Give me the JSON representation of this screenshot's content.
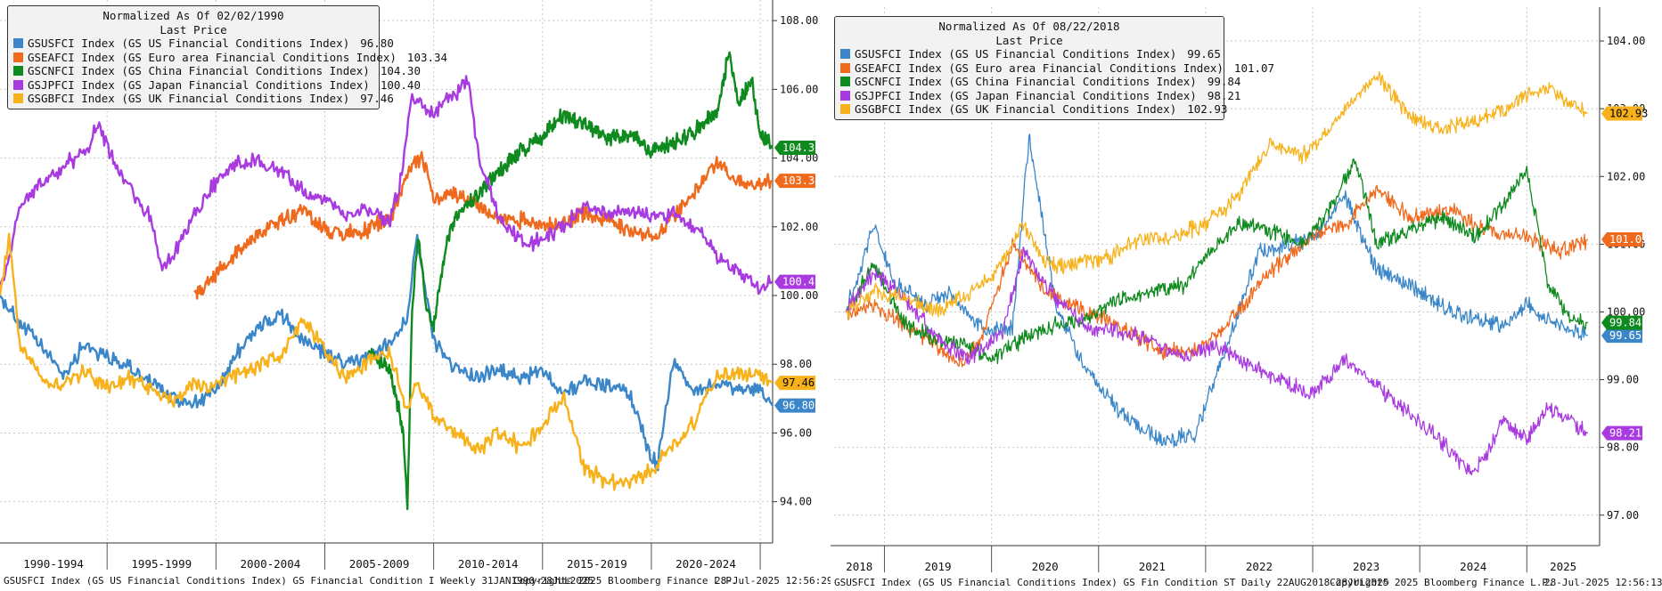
{
  "charts": [
    {
      "legend": {
        "title": "Normalized As Of 02/02/1990",
        "subtitle": "Last Price"
      },
      "footer": {
        "source": "GSUSFCI Index (GS US Financial Conditions Index) GS Financial Condition I  Weekly 31JAN1990-28JUL2025",
        "copyright": "Copyright© 2025 Bloomberg Finance L.P.",
        "timestamp": "28-Jul-2025 12:56:29"
      }
    },
    {
      "legend": {
        "title": "Normalized As Of 08/22/2018",
        "subtitle": "Last Price"
      },
      "footer": {
        "source": "GSUSFCI Index (GS US Financial Conditions Index) GS Fin Condition ST  Daily 22AUG2018-28JUL2025",
        "copyright": "Copyright© 2025 Bloomberg Finance L.P.",
        "timestamp": "28-Jul-2025 12:56:13"
      }
    }
  ],
  "chart_data": [
    {
      "type": "line",
      "xlim": [
        1990.08,
        2025.57
      ],
      "ylim": [
        92.8,
        108.6
      ],
      "y_ticks": [
        "94.00",
        "96.00",
        "98.00",
        "100.00",
        "102.00",
        "104.00",
        "106.00",
        "108.00"
      ],
      "x_tick_labels": [
        "1990-1994",
        "1995-1999",
        "2000-2004",
        "2005-2009",
        "2010-2014",
        "2015-2019",
        "2020-2024"
      ],
      "x_bounds": [
        1995,
        2000,
        2005,
        2010,
        2015,
        2020,
        2025
      ],
      "series": [
        {
          "name": "GSUSFCI Index (GS US Financial Conditions Index)",
          "last": "96.80",
          "color": "#3a86c8",
          "start": 1990.08,
          "x": [
            1990.08,
            1991,
            1992,
            1993,
            1994,
            1995,
            1996,
            1997,
            1998,
            1999,
            2000,
            2001,
            2002,
            2003,
            2004,
            2005,
            2006,
            2007,
            2008,
            2008.8,
            2009.2,
            2010,
            2011,
            2012,
            2013,
            2014,
            2015,
            2016,
            2017,
            2018,
            2019,
            2020,
            2020.3,
            2021,
            2022,
            2023,
            2024,
            2025,
            2025.57
          ],
          "y": [
            100.0,
            99.2,
            98.5,
            97.7,
            98.6,
            98.2,
            97.9,
            97.5,
            97.0,
            96.9,
            97.2,
            98.4,
            99.1,
            99.4,
            98.7,
            98.3,
            98.0,
            98.2,
            98.6,
            99.4,
            101.8,
            98.7,
            97.9,
            97.6,
            97.8,
            97.6,
            97.8,
            97.2,
            97.5,
            97.4,
            97.2,
            95.3,
            95.1,
            98.1,
            97.2,
            97.4,
            97.2,
            97.3,
            96.8
          ]
        },
        {
          "name": "GSEAFCI Index (GS Euro area Financial Conditions Index)",
          "last": "103.34",
          "color": "#f06a1e",
          "start": 1999.0,
          "x": [
            1999.0,
            2000,
            2001,
            2002,
            2003,
            2004,
            2005,
            2006,
            2007,
            2008,
            2009,
            2009.5,
            2010,
            2011,
            2012,
            2013,
            2014,
            2015,
            2016,
            2017,
            2018,
            2019,
            2020,
            2021,
            2022,
            2023,
            2024,
            2025,
            2025.57
          ],
          "y": [
            100.1,
            100.6,
            101.3,
            101.8,
            102.2,
            102.5,
            101.9,
            101.8,
            101.9,
            102.3,
            103.8,
            104.0,
            102.8,
            103.0,
            102.6,
            102.3,
            102.2,
            102.0,
            102.1,
            102.4,
            102.2,
            101.9,
            101.7,
            102.3,
            103.0,
            103.9,
            103.3,
            103.2,
            103.34
          ]
        },
        {
          "name": "GSCNFCI Index (GS China Financial Conditions Index)",
          "last": "104.30",
          "color": "#0f8a1e",
          "start": 2007.0,
          "x": [
            2007.0,
            2008,
            2008.6,
            2008.8,
            2009.0,
            2009.3,
            2009.6,
            2010,
            2010.5,
            2011,
            2012,
            2013,
            2014,
            2015,
            2016,
            2017,
            2018,
            2019,
            2020,
            2021,
            2022,
            2023,
            2023.6,
            2024,
            2024.6,
            2025,
            2025.57
          ],
          "y": [
            98.4,
            97.8,
            96.1,
            93.8,
            99.5,
            101.8,
            99.8,
            99.1,
            101.2,
            102.3,
            102.9,
            103.6,
            104.2,
            104.6,
            105.3,
            104.9,
            104.6,
            104.7,
            104.2,
            104.4,
            104.8,
            105.4,
            107.1,
            105.6,
            106.3,
            104.7,
            104.3
          ]
        },
        {
          "name": "GSJPFCI Index (GS Japan Financial Conditions Index)",
          "last": "100.40",
          "color": "#a83ae0",
          "start": 1990.08,
          "x": [
            1990.08,
            1990.5,
            1991,
            1992,
            1993,
            1994,
            1994.6,
            1995,
            1996,
            1997,
            1997.5,
            1998,
            1999,
            2000,
            2001,
            2002,
            2003,
            2004,
            2005,
            2006,
            2007,
            2008,
            2008.5,
            2009,
            2010,
            2011,
            2011.6,
            2012,
            2013,
            2014,
            2015,
            2016,
            2017,
            2018,
            2019,
            2020,
            2021,
            2022,
            2023,
            2024,
            2025,
            2025.57
          ],
          "y": [
            100.3,
            101.0,
            102.7,
            103.2,
            103.8,
            104.1,
            105.0,
            104.3,
            103.1,
            102.3,
            100.7,
            101.2,
            102.4,
            103.3,
            103.9,
            103.9,
            103.6,
            103.0,
            102.8,
            102.4,
            102.5,
            102.2,
            103.4,
            105.8,
            105.3,
            105.9,
            106.3,
            104.2,
            102.3,
            101.5,
            101.6,
            102.1,
            102.5,
            102.4,
            102.4,
            102.3,
            102.4,
            102.0,
            101.2,
            100.7,
            100.2,
            100.4
          ]
        },
        {
          "name": "GSGBFCI Index (GS UK Financial Conditions Index)",
          "last": "97.46",
          "color": "#f7b21b",
          "start": 1990.08,
          "x": [
            1990.08,
            1990.5,
            1991,
            1992,
            1993,
            1994,
            1995,
            1996,
            1997,
            1998,
            1999,
            2000,
            2001,
            2002,
            2003,
            2004,
            2005,
            2006,
            2007,
            2008,
            2008.8,
            2009.2,
            2010,
            2011,
            2012,
            2013,
            2014,
            2015,
            2016,
            2017,
            2018,
            2019,
            2020,
            2021,
            2022,
            2023,
            2024,
            2025,
            2025.57
          ],
          "y": [
            100.0,
            101.8,
            98.5,
            97.6,
            97.4,
            97.8,
            97.3,
            97.6,
            97.3,
            96.9,
            97.4,
            97.4,
            97.7,
            98.0,
            98.2,
            99.3,
            98.4,
            97.6,
            98.1,
            98.3,
            96.6,
            97.6,
            96.5,
            96.1,
            95.5,
            96.0,
            95.6,
            96.2,
            97.1,
            94.9,
            94.6,
            94.5,
            94.9,
            95.6,
            96.4,
            97.6,
            97.8,
            97.7,
            97.46
          ]
        }
      ]
    },
    {
      "type": "line",
      "xlim": [
        2018.53,
        2025.68
      ],
      "ylim": [
        96.55,
        104.5
      ],
      "y_ticks": [
        "97.00",
        "98.00",
        "99.00",
        "100.00",
        "101.00",
        "102.00",
        "103.00",
        "104.00"
      ],
      "x_tick_labels": [
        "2018",
        "2019",
        "2020",
        "2021",
        "2022",
        "2023",
        "2024",
        "2025"
      ],
      "x_bounds": [
        2019,
        2020,
        2021,
        2022,
        2023,
        2024,
        2025
      ],
      "series": [
        {
          "name": "GSUSFCI Index (GS US Financial Conditions Index)",
          "last": "99.65",
          "color": "#3a86c8",
          "start": 2018.64,
          "x": [
            2018.64,
            2018.9,
            2019.1,
            2019.4,
            2019.6,
            2019.8,
            2020.0,
            2020.2,
            2020.35,
            2020.6,
            2020.9,
            2021.2,
            2021.6,
            2021.9,
            2022.2,
            2022.5,
            2022.8,
            2023.0,
            2023.3,
            2023.6,
            2023.9,
            2024.2,
            2024.5,
            2024.8,
            2025.0,
            2025.3,
            2025.57
          ],
          "y": [
            100.0,
            101.3,
            100.4,
            100.1,
            100.3,
            99.9,
            99.7,
            99.8,
            102.6,
            100.1,
            99.1,
            98.5,
            98.1,
            98.2,
            99.5,
            100.9,
            101.0,
            101.1,
            101.7,
            100.6,
            100.4,
            100.1,
            99.9,
            99.8,
            100.1,
            99.8,
            99.65
          ]
        },
        {
          "name": "GSEAFCI Index (GS Euro area Financial Conditions Index)",
          "last": "101.07",
          "color": "#f06a1e",
          "start": 2018.64,
          "x": [
            2018.64,
            2018.9,
            2019.1,
            2019.4,
            2019.7,
            2019.9,
            2020.2,
            2020.5,
            2020.9,
            2021.3,
            2021.6,
            2022.0,
            2022.3,
            2022.6,
            2023.0,
            2023.3,
            2023.6,
            2023.9,
            2024.3,
            2024.6,
            2025.0,
            2025.3,
            2025.57
          ],
          "y": [
            100.0,
            100.1,
            99.9,
            99.6,
            99.2,
            99.6,
            101.0,
            100.3,
            100.0,
            99.7,
            99.4,
            99.5,
            100.0,
            100.6,
            101.1,
            101.3,
            101.8,
            101.4,
            101.5,
            101.2,
            101.1,
            100.9,
            101.07
          ]
        },
        {
          "name": "GSCNFCI Index (GS China Financial Conditions Index)",
          "last": "99.84",
          "color": "#0f8a1e",
          "start": 2018.64,
          "x": [
            2018.64,
            2018.9,
            2019.2,
            2019.5,
            2019.8,
            2020.0,
            2020.3,
            2020.6,
            2020.9,
            2021.2,
            2021.5,
            2021.8,
            2022.0,
            2022.3,
            2022.6,
            2022.9,
            2023.2,
            2023.4,
            2023.6,
            2023.9,
            2024.2,
            2024.5,
            2024.8,
            2025.0,
            2025.2,
            2025.4,
            2025.57
          ],
          "y": [
            100.0,
            100.7,
            99.8,
            99.6,
            99.5,
            99.3,
            99.6,
            99.8,
            99.9,
            100.2,
            100.3,
            100.4,
            100.8,
            101.3,
            101.2,
            101.0,
            101.6,
            102.3,
            101.0,
            101.2,
            101.4,
            101.1,
            101.6,
            102.1,
            100.4,
            99.9,
            99.84
          ]
        },
        {
          "name": "GSJPFCI Index (GS Japan Financial Conditions Index)",
          "last": "98.21",
          "color": "#a83ae0",
          "start": 2018.64,
          "x": [
            2018.64,
            2018.9,
            2019.2,
            2019.5,
            2019.8,
            2020.1,
            2020.3,
            2020.6,
            2020.9,
            2021.2,
            2021.5,
            2021.8,
            2022.1,
            2022.4,
            2022.7,
            2023.0,
            2023.3,
            2023.6,
            2023.9,
            2024.2,
            2024.5,
            2024.8,
            2025.0,
            2025.2,
            2025.4,
            2025.57
          ],
          "y": [
            100.0,
            100.6,
            100.2,
            99.6,
            99.3,
            99.7,
            100.9,
            100.2,
            99.8,
            99.7,
            99.6,
            99.3,
            99.5,
            99.2,
            99.0,
            98.8,
            99.3,
            98.9,
            98.5,
            98.1,
            97.6,
            98.4,
            98.1,
            98.6,
            98.4,
            98.21
          ]
        },
        {
          "name": "GSGBFCI Index (GS UK Financial Conditions Index)",
          "last": "102.93",
          "color": "#f7b21b",
          "start": 2018.64,
          "x": [
            2018.64,
            2018.9,
            2019.2,
            2019.5,
            2019.8,
            2020.0,
            2020.3,
            2020.5,
            2020.8,
            2021.1,
            2021.4,
            2021.7,
            2022.0,
            2022.3,
            2022.6,
            2022.9,
            2023.1,
            2023.3,
            2023.6,
            2023.9,
            2024.2,
            2024.5,
            2024.8,
            2025.0,
            2025.2,
            2025.4,
            2025.57
          ],
          "y": [
            100.0,
            100.3,
            100.2,
            100.0,
            100.3,
            100.5,
            101.3,
            100.7,
            100.7,
            100.8,
            101.1,
            101.1,
            101.3,
            101.7,
            102.5,
            102.3,
            102.6,
            103.0,
            103.5,
            102.9,
            102.7,
            102.8,
            103.0,
            103.2,
            103.3,
            103.1,
            102.93
          ]
        }
      ]
    }
  ]
}
